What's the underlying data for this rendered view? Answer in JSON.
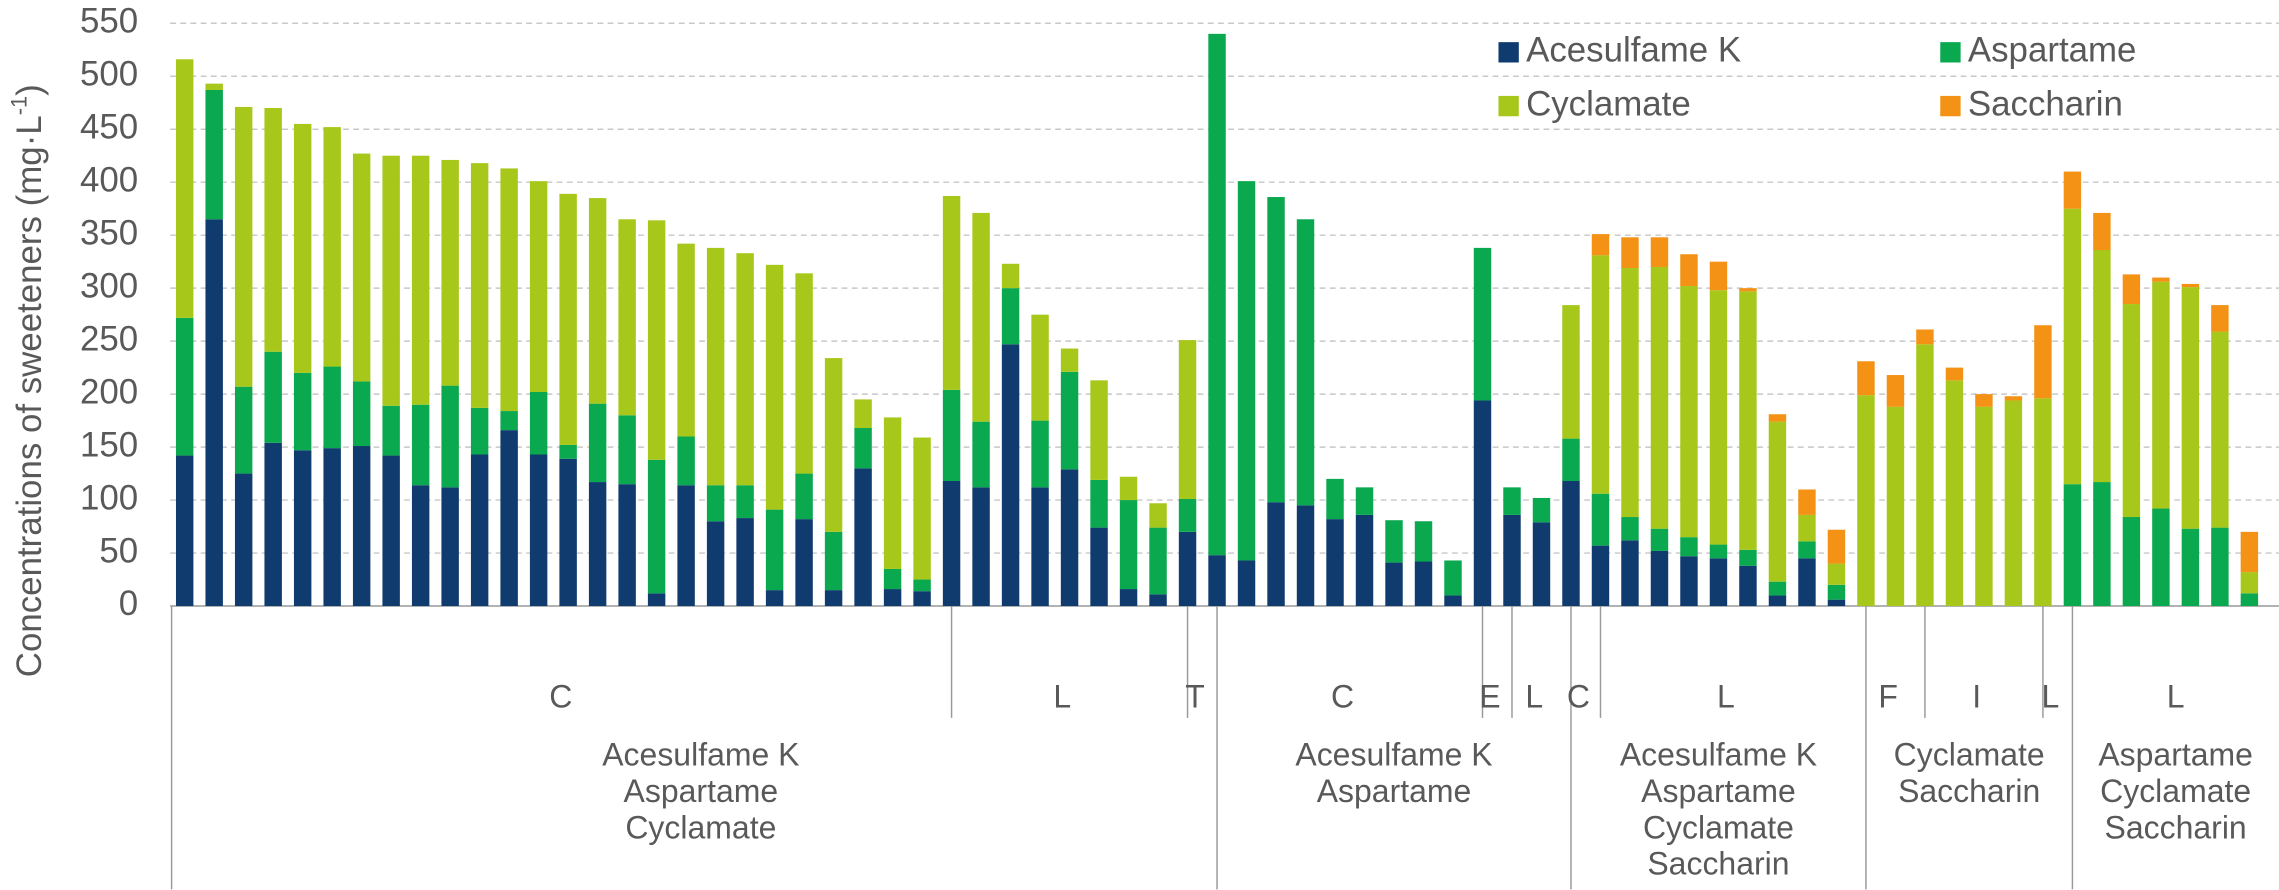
{
  "chart_data": {
    "type": "stacked-bar",
    "ylabel": {
      "text": "Concentrations of sweeteners (mg·L",
      "superscript": "-1",
      "end": ")"
    },
    "ylim": [
      0,
      550
    ],
    "yticks": [
      0,
      50,
      100,
      150,
      200,
      250,
      300,
      350,
      400,
      450,
      500,
      550
    ],
    "grid": true,
    "legend": "top-right",
    "series": [
      {
        "name": "Acesulfame K",
        "color": "#0f3b6e"
      },
      {
        "name": "Aspartame",
        "color": "#0aa84f"
      },
      {
        "name": "Cyclamate",
        "color": "#a7c81b"
      },
      {
        "name": "Saccharin",
        "color": "#f39215"
      }
    ],
    "groups": [
      {
        "label": [
          "Acesulfame K",
          "Aspartame",
          "Cyclamate"
        ],
        "subgroups": [
          {
            "label": "C",
            "bars": [
              [
                142,
                130,
                244,
                null
              ],
              [
                365,
                122,
                6,
                null
              ],
              [
                125,
                82,
                264,
                null
              ],
              [
                154,
                86,
                230,
                null
              ],
              [
                147,
                73,
                235,
                null
              ],
              [
                149,
                77,
                226,
                null
              ],
              [
                151,
                61,
                215,
                null
              ],
              [
                142,
                47,
                236,
                null
              ],
              [
                114,
                76,
                235,
                null
              ],
              [
                112,
                96,
                213,
                null
              ],
              [
                143,
                44,
                231,
                null
              ],
              [
                166,
                18,
                229,
                null
              ],
              [
                143,
                59,
                199,
                null
              ],
              [
                139,
                13,
                237,
                null
              ],
              [
                117,
                74,
                194,
                null
              ],
              [
                115,
                65,
                185,
                null
              ],
              [
                12,
                126,
                226,
                null
              ],
              [
                114,
                46,
                182,
                null
              ],
              [
                80,
                34,
                224,
                null
              ],
              [
                83,
                31,
                219,
                null
              ],
              [
                15,
                76,
                231,
                null
              ],
              [
                82,
                43,
                189,
                null
              ],
              [
                15,
                55,
                164,
                null
              ],
              [
                130,
                38,
                27,
                null
              ],
              [
                16,
                19,
                143,
                null
              ],
              [
                14,
                11,
                134,
                null
              ]
            ]
          },
          {
            "label": "L",
            "bars": [
              [
                118,
                86,
                183,
                null
              ],
              [
                112,
                62,
                197,
                null
              ],
              [
                247,
                53,
                23,
                null
              ],
              [
                112,
                63,
                100,
                null
              ],
              [
                129,
                92,
                22,
                null
              ],
              [
                74,
                45,
                94,
                null
              ],
              [
                16,
                84,
                22,
                null
              ],
              [
                11,
                63,
                23,
                null
              ]
            ]
          },
          {
            "label": "T",
            "bars": [
              [
                70,
                31,
                150,
                null
              ]
            ]
          }
        ]
      },
      {
        "label": [
          "Acesulfame K",
          "Aspartame"
        ],
        "subgroups": [
          {
            "label": "C",
            "bars": [
              [
                48,
                492,
                null,
                null
              ],
              [
                43,
                358,
                null,
                null
              ],
              [
                98,
                288,
                null,
                null
              ],
              [
                95,
                270,
                null,
                null
              ],
              [
                82,
                38,
                null,
                null
              ],
              [
                86,
                26,
                null,
                null
              ],
              [
                41,
                40,
                null,
                null
              ],
              [
                42,
                38,
                null,
                null
              ],
              [
                10,
                33,
                null,
                null
              ]
            ]
          },
          {
            "label": "E",
            "bars": [
              [
                194,
                144,
                null,
                null
              ]
            ]
          },
          {
            "label": "L",
            "bars": [
              [
                86,
                26,
                null,
                null
              ],
              [
                79,
                23,
                null,
                null
              ]
            ]
          }
        ]
      },
      {
        "label": [
          "Acesulfame K",
          "Aspartame",
          "Cyclamate",
          "Saccharin"
        ],
        "subgroups": [
          {
            "label": "C",
            "bars": [
              [
                118,
                40,
                126,
                null
              ]
            ]
          },
          {
            "label": "L",
            "bars": [
              [
                57,
                49,
                225,
                20
              ],
              [
                62,
                22,
                235,
                29
              ],
              [
                52,
                21,
                247,
                28
              ],
              [
                47,
                18,
                237,
                30
              ],
              [
                45,
                13,
                240,
                27
              ],
              [
                38,
                15,
                244,
                3
              ],
              [
                10,
                13,
                151,
                7
              ],
              [
                45,
                16,
                25,
                24
              ],
              [
                6,
                14,
                20,
                32
              ]
            ]
          }
        ]
      },
      {
        "label": [
          "Cyclamate",
          "Saccharin"
        ],
        "subgroups": [
          {
            "label": "F",
            "bars": [
              [
                null,
                null,
                199,
                32
              ],
              [
                null,
                null,
                188,
                30
              ]
            ]
          },
          {
            "label": "I",
            "bars": [
              [
                null,
                null,
                247,
                14
              ],
              [
                null,
                null,
                213,
                12
              ],
              [
                null,
                null,
                188,
                12
              ],
              [
                null,
                null,
                194,
                4
              ]
            ]
          },
          {
            "label": "L",
            "bars": [
              [
                null,
                null,
                196,
                69
              ]
            ]
          }
        ]
      },
      {
        "label": [
          "Aspartame",
          "Cyclamate",
          "Saccharin"
        ],
        "subgroups": [
          {
            "label": "L",
            "bars": [
              [
                null,
                115,
                260,
                35
              ],
              [
                null,
                117,
                219,
                35
              ],
              [
                null,
                84,
                201,
                28
              ],
              [
                null,
                92,
                214,
                4
              ],
              [
                null,
                73,
                228,
                3
              ],
              [
                null,
                74,
                185,
                25
              ],
              [
                null,
                12,
                20,
                38
              ]
            ]
          }
        ]
      }
    ]
  }
}
